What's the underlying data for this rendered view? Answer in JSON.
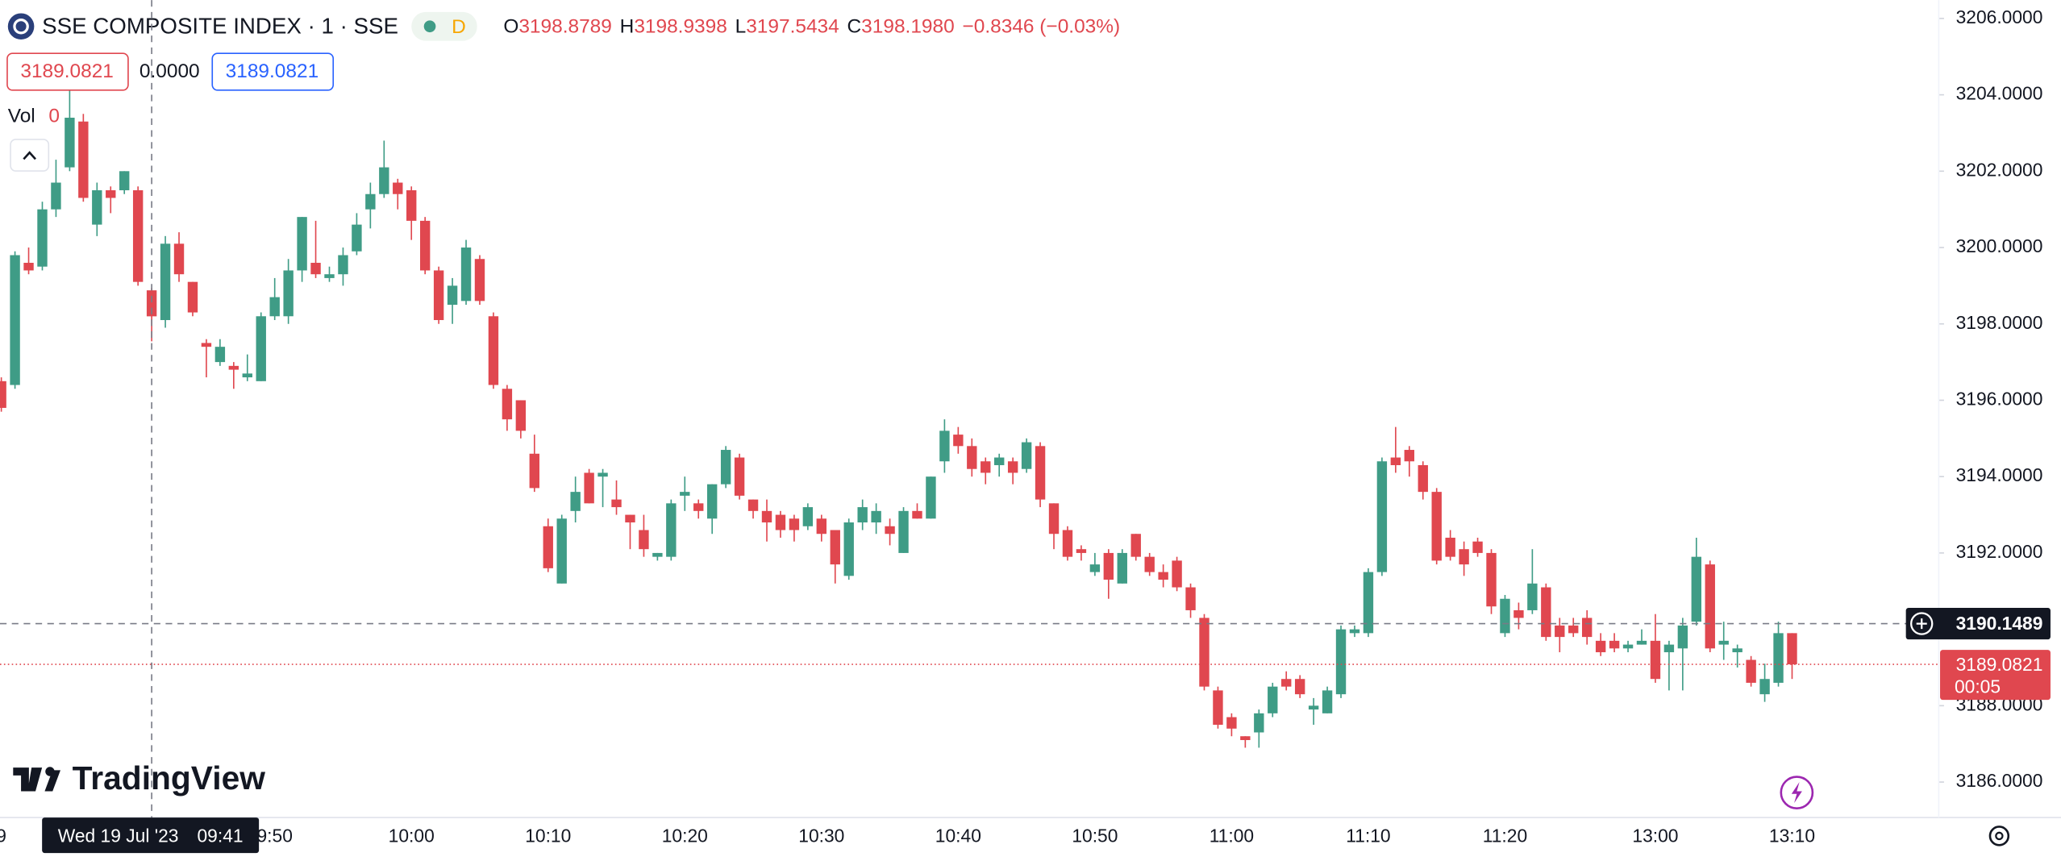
{
  "chart_data": {
    "type": "candlestick",
    "title": "SSE COMPOSITE INDEX · 1 · SSE",
    "interval_badge": "D",
    "legend": {
      "open_label": "O",
      "open": "3198.8789",
      "high_label": "H",
      "high": "3198.9398",
      "low_label": "L",
      "low": "3197.5434",
      "close_label": "C",
      "close": "3198.1980",
      "change": "−0.8346 (−0.03%)"
    },
    "inputs": {
      "sell": "3189.0821",
      "spread": "0.0000",
      "buy": "3189.0821"
    },
    "volume": {
      "label": "Vol",
      "value": "0"
    },
    "up_color": "#3f9c86",
    "down_color": "#e0474f",
    "categories": [
      "9",
      null,
      null,
      null,
      null,
      null,
      null,
      null,
      null,
      null,
      null,
      null,
      null,
      null,
      null,
      null,
      null,
      null,
      null,
      null,
      "9:50",
      null,
      null,
      null,
      null,
      null,
      null,
      null,
      null,
      null,
      "10:00",
      null,
      null,
      null,
      null,
      null,
      null,
      null,
      null,
      null,
      "10:10",
      null,
      null,
      null,
      null,
      null,
      null,
      null,
      null,
      null,
      "10:20",
      null,
      null,
      null,
      null,
      null,
      null,
      null,
      null,
      null,
      "10:30",
      null,
      null,
      null,
      null,
      null,
      null,
      null,
      null,
      null,
      "10:40",
      null,
      null,
      null,
      null,
      null,
      null,
      null,
      null,
      null,
      "10:50",
      null,
      null,
      null,
      null,
      null,
      null,
      null,
      null,
      null,
      "11:00",
      null,
      null,
      null,
      null,
      null,
      null,
      null,
      null,
      null,
      "11:10",
      null,
      null,
      null,
      null,
      null,
      null,
      null,
      null,
      null,
      "11:20",
      null,
      null,
      null,
      null,
      null,
      null,
      null,
      null,
      null,
      null,
      "13:00",
      null,
      null,
      null,
      null,
      null,
      null,
      null,
      null,
      null,
      "13:10"
    ],
    "open": [
      3196.5,
      3196.4,
      3199.6,
      3199.5,
      3201.0,
      3202.1,
      3203.3,
      3200.6,
      3201.5,
      3201.5,
      3201.5,
      3198.8789,
      3198.1,
      3200.1,
      3199.1,
      3197.5,
      3197.0,
      3196.9,
      3196.6,
      3196.5,
      3198.2,
      3198.2,
      3199.4,
      3199.6,
      3199.2,
      3199.3,
      3199.9,
      3201.0,
      3201.4,
      3201.7,
      3201.5,
      3200.7,
      3199.4,
      3198.5,
      3198.6,
      3199.7,
      3198.2,
      3196.3,
      3196.0,
      3194.6,
      3192.7,
      3191.2,
      3193.1,
      3194.1,
      3194.0,
      3193.4,
      3193.0,
      3192.6,
      3191.9,
      3191.9,
      3193.5,
      3193.3,
      3192.9,
      3193.8,
      3194.5,
      3193.4,
      3193.1,
      3193.0,
      3192.9,
      3192.7,
      3192.9,
      3192.6,
      3191.4,
      3192.8,
      3192.8,
      3192.7,
      3192.0,
      3193.1,
      3192.9,
      3194.4,
      3195.1,
      3194.8,
      3194.4,
      3194.3,
      3194.4,
      3194.2,
      3194.8,
      3193.3,
      3192.6,
      3192.1,
      3191.5,
      3192.0,
      3191.2,
      3192.5,
      3191.9,
      3191.5,
      3191.8,
      3191.1,
      3190.3,
      3188.4,
      3187.7,
      3187.2,
      3187.3,
      3187.8,
      3188.7,
      3188.7,
      3187.9,
      3187.8,
      3188.3,
      3189.9,
      3189.9,
      3191.5,
      3194.5,
      3194.7,
      3194.3,
      3193.6,
      3192.4,
      3192.1,
      3192.3,
      3192.0,
      3189.9,
      3190.5,
      3190.5,
      3191.1,
      3190.1,
      3190.1,
      3190.3,
      3189.7,
      3189.7,
      3189.5,
      3189.6,
      3189.7,
      3189.4,
      3189.5,
      3190.2,
      3191.7,
      3189.6,
      3189.4,
      3189.2,
      3188.3,
      3188.6,
      3189.9
    ],
    "high": [
      3196.6,
      3199.9,
      3200.0,
      3201.2,
      3202.3,
      3204.4,
      3203.5,
      3201.7,
      3201.6,
      3202.0,
      3201.6,
      3198.9398,
      3200.3,
      3200.4,
      3199.1,
      3197.6,
      3197.6,
      3197.0,
      3197.2,
      3198.3,
      3199.2,
      3199.7,
      3200.8,
      3200.7,
      3199.5,
      3200.0,
      3200.9,
      3201.7,
      3202.8,
      3201.8,
      3201.6,
      3200.8,
      3199.5,
      3199.2,
      3200.2,
      3199.8,
      3198.3,
      3196.4,
      3196.0,
      3195.1,
      3192.9,
      3193.0,
      3194.0,
      3194.2,
      3194.2,
      3193.9,
      3193.0,
      3193.0,
      3192.0,
      3193.4,
      3194.0,
      3193.4,
      3193.8,
      3194.8,
      3194.6,
      3193.4,
      3193.4,
      3193.1,
      3193.0,
      3193.3,
      3193.0,
      3192.6,
      3192.9,
      3193.4,
      3193.3,
      3192.9,
      3193.2,
      3193.3,
      3194.0,
      3195.5,
      3195.3,
      3195.0,
      3194.5,
      3194.6,
      3194.5,
      3195.0,
      3194.9,
      3193.3,
      3192.7,
      3192.2,
      3192.0,
      3192.1,
      3192.1,
      3192.5,
      3192.0,
      3191.7,
      3191.9,
      3191.2,
      3190.4,
      3188.5,
      3187.8,
      3187.2,
      3187.9,
      3188.6,
      3188.9,
      3188.8,
      3188.2,
      3188.5,
      3190.1,
      3190.1,
      3191.6,
      3194.5,
      3195.3,
      3194.8,
      3194.4,
      3193.7,
      3192.6,
      3192.3,
      3192.4,
      3192.1,
      3190.9,
      3190.7,
      3192.1,
      3191.2,
      3190.3,
      3190.3,
      3190.5,
      3189.9,
      3189.9,
      3189.7,
      3190.0,
      3190.4,
      3189.7,
      3190.3,
      3192.4,
      3191.8,
      3190.2,
      3189.6,
      3189.3,
      3189.1,
      3190.2,
      3189.9
    ],
    "low": [
      3195.7,
      3196.3,
      3199.3,
      3199.4,
      3200.8,
      3202.0,
      3201.2,
      3200.3,
      3200.9,
      3201.4,
      3199.0,
      3197.5434,
      3197.9,
      3199.1,
      3198.2,
      3196.6,
      3196.9,
      3196.3,
      3196.5,
      3196.5,
      3198.1,
      3198.0,
      3199.1,
      3199.2,
      3199.1,
      3199.0,
      3199.8,
      3200.5,
      3201.3,
      3201.0,
      3200.2,
      3199.3,
      3198.0,
      3198.0,
      3198.5,
      3198.5,
      3196.3,
      3195.2,
      3195.0,
      3193.6,
      3191.5,
      3191.2,
      3192.8,
      3193.3,
      3193.2,
      3193.0,
      3192.1,
      3191.9,
      3191.8,
      3191.8,
      3193.1,
      3192.9,
      3192.5,
      3193.7,
      3193.4,
      3192.9,
      3192.3,
      3192.4,
      3192.3,
      3192.6,
      3192.3,
      3191.2,
      3191.3,
      3192.6,
      3192.5,
      3192.2,
      3192.0,
      3192.9,
      3192.9,
      3194.1,
      3194.6,
      3194.0,
      3193.8,
      3194.0,
      3193.8,
      3194.1,
      3193.2,
      3192.1,
      3191.8,
      3191.8,
      3191.4,
      3190.8,
      3191.2,
      3191.8,
      3191.4,
      3191.1,
      3191.0,
      3190.3,
      3188.4,
      3187.4,
      3187.2,
      3186.9,
      3186.9,
      3187.7,
      3188.4,
      3188.2,
      3187.5,
      3187.8,
      3188.2,
      3189.8,
      3189.8,
      3191.4,
      3194.1,
      3194.0,
      3193.4,
      3191.7,
      3191.8,
      3191.4,
      3191.9,
      3190.4,
      3189.8,
      3190.0,
      3190.4,
      3189.7,
      3189.4,
      3189.8,
      3189.6,
      3189.3,
      3189.4,
      3189.4,
      3189.6,
      3188.6,
      3188.4,
      3188.4,
      3190.1,
      3189.4,
      3189.2,
      3189.0,
      3188.5,
      3188.1,
      3188.5,
      3188.7
    ],
    "close": [
      3195.8,
      3199.8,
      3199.4,
      3201.0,
      3201.7,
      3203.4,
      3201.3,
      3201.5,
      3201.3,
      3202.0,
      3199.1,
      3198.198,
      3200.1,
      3199.3,
      3198.3,
      3197.4,
      3197.4,
      3196.8,
      3196.7,
      3198.2,
      3198.7,
      3199.4,
      3200.8,
      3199.3,
      3199.3,
      3199.8,
      3200.6,
      3201.4,
      3202.1,
      3201.4,
      3200.7,
      3199.4,
      3198.1,
      3199.0,
      3200.0,
      3198.6,
      3196.4,
      3195.5,
      3195.2,
      3193.7,
      3191.6,
      3192.9,
      3193.6,
      3193.3,
      3194.1,
      3193.2,
      3192.8,
      3192.1,
      3192.0,
      3193.3,
      3193.6,
      3193.1,
      3193.8,
      3194.7,
      3193.5,
      3193.1,
      3192.8,
      3192.6,
      3192.6,
      3193.2,
      3192.5,
      3191.7,
      3192.8,
      3193.2,
      3193.1,
      3192.5,
      3193.1,
      3192.9,
      3194.0,
      3195.2,
      3194.8,
      3194.2,
      3194.1,
      3194.5,
      3194.1,
      3194.9,
      3193.4,
      3192.5,
      3191.9,
      3192.0,
      3191.7,
      3191.3,
      3192.0,
      3191.9,
      3191.5,
      3191.3,
      3191.1,
      3190.5,
      3188.5,
      3187.5,
      3187.4,
      3187.1,
      3187.8,
      3188.5,
      3188.5,
      3188.3,
      3188.0,
      3188.4,
      3190.0,
      3190.0,
      3191.5,
      3194.4,
      3194.3,
      3194.4,
      3193.6,
      3191.8,
      3191.9,
      3191.7,
      3192.0,
      3190.6,
      3190.8,
      3190.3,
      3191.2,
      3189.8,
      3189.8,
      3189.9,
      3189.8,
      3189.4,
      3189.5,
      3189.6,
      3189.7,
      3188.7,
      3189.6,
      3190.1,
      3191.9,
      3189.5,
      3189.7,
      3189.5,
      3188.6,
      3188.7,
      3189.9,
      3189.0821
    ],
    "ylim": [
      3185.14,
      3206.48
    ],
    "yticks": [
      {
        "value": 3186,
        "label": "3186.0000"
      },
      {
        "value": 3188,
        "label": "3188.0000"
      },
      {
        "value": 3190,
        "label": "3190.0000"
      },
      {
        "value": 3192,
        "label": "3192.0000"
      },
      {
        "value": 3194,
        "label": "3194.0000"
      },
      {
        "value": 3196,
        "label": "3196.0000"
      },
      {
        "value": 3198,
        "label": "3198.0000"
      },
      {
        "value": 3200,
        "label": "3200.0000"
      },
      {
        "value": 3202,
        "label": "3202.0000"
      },
      {
        "value": 3204,
        "label": "3204.0000"
      },
      {
        "value": 3206,
        "label": "3206.0000"
      }
    ],
    "crosshair": {
      "price": 3190.1489,
      "date": "Wed 19 Jul '23",
      "time": "09:41"
    },
    "last_price": {
      "price": 3189.0821,
      "countdown": "00:05"
    },
    "brand": "TradingView"
  }
}
